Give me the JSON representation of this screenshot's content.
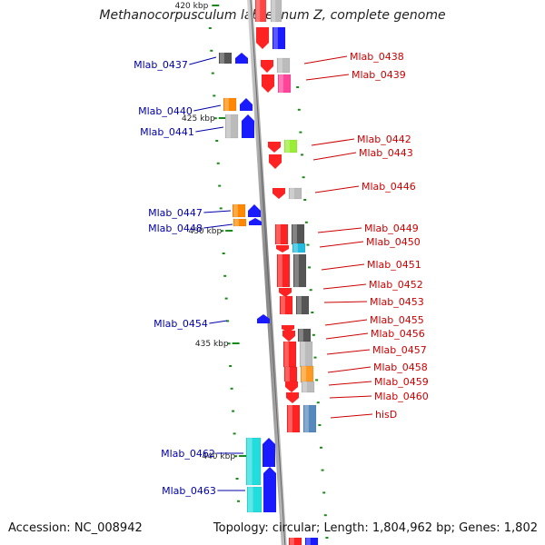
{
  "title": "Methanocorpusculum labreanum Z, complete genome",
  "footer": {
    "accession": "Accession: NC_008942",
    "topology": "Topology: circular; Length: 1,804,962 bp; Genes: 1,802"
  },
  "colors": {
    "forward_label": "#cc0000",
    "reverse_label": "#0000aa",
    "tick": "#1a8a1a",
    "backbone": "#999999"
  },
  "scale": {
    "ticks": [
      {
        "label": "420 kbp",
        "y": 5
      },
      {
        "label": "425 kbp",
        "y": 129
      },
      {
        "label": "430 kbp",
        "y": 253
      },
      {
        "label": "435 kbp",
        "y": 377
      },
      {
        "label": "440 kbp",
        "y": 501
      }
    ]
  },
  "genes": [
    {
      "label": "Mlab_0437",
      "strand": "reverse"
    },
    {
      "label": "Mlab_0438",
      "strand": "forward"
    },
    {
      "label": "Mlab_0439",
      "strand": "forward"
    },
    {
      "label": "Mlab_0440",
      "strand": "reverse"
    },
    {
      "label": "Mlab_0441",
      "strand": "reverse"
    },
    {
      "label": "Mlab_0442",
      "strand": "forward"
    },
    {
      "label": "Mlab_0443",
      "strand": "forward"
    },
    {
      "label": "Mlab_0446",
      "strand": "forward"
    },
    {
      "label": "Mlab_0447",
      "strand": "reverse"
    },
    {
      "label": "Mlab_0448",
      "strand": "reverse"
    },
    {
      "label": "Mlab_0449",
      "strand": "forward"
    },
    {
      "label": "Mlab_0450",
      "strand": "forward"
    },
    {
      "label": "Mlab_0451",
      "strand": "forward"
    },
    {
      "label": "Mlab_0452",
      "strand": "forward"
    },
    {
      "label": "Mlab_0453",
      "strand": "forward"
    },
    {
      "label": "Mlab_0454",
      "strand": "reverse"
    },
    {
      "label": "Mlab_0455",
      "strand": "forward"
    },
    {
      "label": "Mlab_0456",
      "strand": "forward"
    },
    {
      "label": "Mlab_0457",
      "strand": "forward"
    },
    {
      "label": "Mlab_0458",
      "strand": "forward"
    },
    {
      "label": "Mlab_0459",
      "strand": "forward"
    },
    {
      "label": "Mlab_0460",
      "strand": "forward"
    },
    {
      "label": "hisD",
      "strand": "forward"
    },
    {
      "label": "Mlab_0462",
      "strand": "reverse"
    },
    {
      "label": "Mlab_0463",
      "strand": "reverse"
    }
  ]
}
